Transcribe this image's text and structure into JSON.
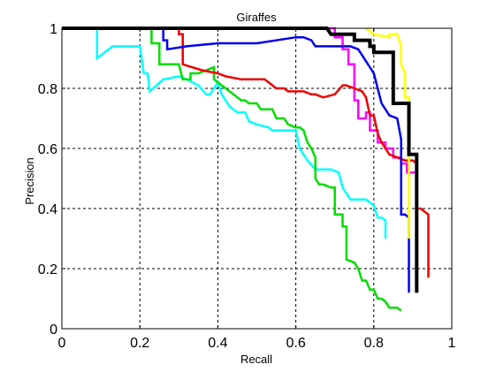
{
  "chart_data": {
    "type": "line",
    "title": "Giraffes",
    "xlabel": "Recall",
    "ylabel": "Precision",
    "xlim": [
      0,
      1
    ],
    "ylim": [
      0,
      1
    ],
    "grid": true,
    "xticks": [
      0,
      0.2,
      0.4,
      0.6,
      0.8,
      1
    ],
    "yticks": [
      0,
      0.2,
      0.4,
      0.6,
      0.8,
      1
    ],
    "xtick_labels": [
      "0",
      "0.2",
      "0.4",
      "0.6",
      "0.8",
      "1"
    ],
    "ytick_labels": [
      "0",
      "0.2",
      "0.4",
      "0.6",
      "0.8",
      "1"
    ],
    "series": [
      {
        "color": "#ff00ff",
        "points": [
          [
            0.015,
            1.0
          ],
          [
            0.7,
            1.0
          ],
          [
            0.7,
            0.97
          ],
          [
            0.72,
            0.97
          ],
          [
            0.72,
            0.93
          ],
          [
            0.735,
            0.93
          ],
          [
            0.735,
            0.88
          ],
          [
            0.75,
            0.88
          ],
          [
            0.75,
            0.76
          ],
          [
            0.76,
            0.76
          ],
          [
            0.76,
            0.7
          ],
          [
            0.78,
            0.7
          ],
          [
            0.78,
            0.72
          ],
          [
            0.79,
            0.72
          ],
          [
            0.79,
            0.66
          ],
          [
            0.81,
            0.66
          ],
          [
            0.81,
            0.62
          ],
          [
            0.83,
            0.62
          ],
          [
            0.83,
            0.6
          ],
          [
            0.85,
            0.6
          ],
          [
            0.85,
            0.57
          ],
          [
            0.87,
            0.57
          ],
          [
            0.87,
            0.55
          ],
          [
            0.885,
            0.55
          ],
          [
            0.885,
            0.52
          ],
          [
            0.91,
            0.52
          ],
          [
            0.91,
            0.12
          ]
        ]
      },
      {
        "color": "#00ffff",
        "points": [
          [
            0.09,
            1.0
          ],
          [
            0.09,
            0.9
          ],
          [
            0.13,
            0.94
          ],
          [
            0.14,
            0.94
          ],
          [
            0.2,
            0.94
          ],
          [
            0.21,
            0.85
          ],
          [
            0.22,
            0.85
          ],
          [
            0.225,
            0.79
          ],
          [
            0.26,
            0.83
          ],
          [
            0.3,
            0.84
          ],
          [
            0.32,
            0.83
          ],
          [
            0.35,
            0.81
          ],
          [
            0.37,
            0.78
          ],
          [
            0.38,
            0.78
          ],
          [
            0.4,
            0.82
          ],
          [
            0.41,
            0.78
          ],
          [
            0.43,
            0.74
          ],
          [
            0.45,
            0.72
          ],
          [
            0.47,
            0.72
          ],
          [
            0.48,
            0.69
          ],
          [
            0.5,
            0.68
          ],
          [
            0.53,
            0.67
          ],
          [
            0.54,
            0.66
          ],
          [
            0.57,
            0.66
          ],
          [
            0.6,
            0.66
          ],
          [
            0.61,
            0.6
          ],
          [
            0.63,
            0.56
          ],
          [
            0.65,
            0.53
          ],
          [
            0.69,
            0.53
          ],
          [
            0.71,
            0.52
          ],
          [
            0.72,
            0.47
          ],
          [
            0.74,
            0.43
          ],
          [
            0.78,
            0.43
          ],
          [
            0.8,
            0.41
          ],
          [
            0.81,
            0.37
          ],
          [
            0.82,
            0.37
          ],
          [
            0.83,
            0.36
          ],
          [
            0.83,
            0.3
          ]
        ]
      },
      {
        "color": "#00dd00",
        "points": [
          [
            0.23,
            1.0
          ],
          [
            0.23,
            0.95
          ],
          [
            0.25,
            0.95
          ],
          [
            0.25,
            0.88
          ],
          [
            0.28,
            0.88
          ],
          [
            0.3,
            0.88
          ],
          [
            0.31,
            0.83
          ],
          [
            0.33,
            0.83
          ],
          [
            0.33,
            0.85
          ],
          [
            0.35,
            0.85
          ],
          [
            0.37,
            0.86
          ],
          [
            0.39,
            0.87
          ],
          [
            0.39,
            0.83
          ],
          [
            0.42,
            0.8
          ],
          [
            0.43,
            0.79
          ],
          [
            0.44,
            0.78
          ],
          [
            0.46,
            0.76
          ],
          [
            0.47,
            0.76
          ],
          [
            0.48,
            0.75
          ],
          [
            0.5,
            0.75
          ],
          [
            0.51,
            0.73
          ],
          [
            0.53,
            0.73
          ],
          [
            0.54,
            0.73
          ],
          [
            0.55,
            0.7
          ],
          [
            0.57,
            0.7
          ],
          [
            0.58,
            0.68
          ],
          [
            0.6,
            0.67
          ],
          [
            0.61,
            0.67
          ],
          [
            0.62,
            0.66
          ],
          [
            0.63,
            0.62
          ],
          [
            0.64,
            0.6
          ],
          [
            0.65,
            0.57
          ],
          [
            0.65,
            0.5
          ],
          [
            0.66,
            0.48
          ],
          [
            0.67,
            0.48
          ],
          [
            0.69,
            0.47
          ],
          [
            0.7,
            0.47
          ],
          [
            0.7,
            0.38
          ],
          [
            0.72,
            0.38
          ],
          [
            0.72,
            0.34
          ],
          [
            0.73,
            0.34
          ],
          [
            0.73,
            0.23
          ],
          [
            0.75,
            0.22
          ],
          [
            0.76,
            0.2
          ],
          [
            0.77,
            0.16
          ],
          [
            0.78,
            0.16
          ],
          [
            0.79,
            0.13
          ],
          [
            0.8,
            0.13
          ],
          [
            0.81,
            0.1
          ],
          [
            0.82,
            0.1
          ],
          [
            0.83,
            0.09
          ],
          [
            0.84,
            0.07
          ],
          [
            0.86,
            0.07
          ],
          [
            0.87,
            0.06
          ]
        ]
      },
      {
        "color": "#ee0000",
        "points": [
          [
            0.3,
            1.0
          ],
          [
            0.3,
            0.98
          ],
          [
            0.31,
            0.98
          ],
          [
            0.31,
            0.93
          ],
          [
            0.31,
            0.88
          ],
          [
            0.36,
            0.86
          ],
          [
            0.4,
            0.85
          ],
          [
            0.42,
            0.84
          ],
          [
            0.46,
            0.83
          ],
          [
            0.52,
            0.83
          ],
          [
            0.55,
            0.8
          ],
          [
            0.57,
            0.8
          ],
          [
            0.58,
            0.79
          ],
          [
            0.62,
            0.79
          ],
          [
            0.64,
            0.78
          ],
          [
            0.65,
            0.78
          ],
          [
            0.67,
            0.77
          ],
          [
            0.7,
            0.78
          ],
          [
            0.72,
            0.81
          ],
          [
            0.73,
            0.81
          ],
          [
            0.75,
            0.8
          ],
          [
            0.77,
            0.79
          ],
          [
            0.78,
            0.77
          ],
          [
            0.79,
            0.71
          ],
          [
            0.8,
            0.71
          ],
          [
            0.81,
            0.65
          ],
          [
            0.82,
            0.62
          ],
          [
            0.83,
            0.6
          ],
          [
            0.84,
            0.58
          ],
          [
            0.86,
            0.57
          ],
          [
            0.88,
            0.56
          ],
          [
            0.9,
            0.56
          ],
          [
            0.91,
            0.55
          ],
          [
            0.91,
            0.4
          ],
          [
            0.92,
            0.4
          ],
          [
            0.93,
            0.39
          ],
          [
            0.94,
            0.38
          ],
          [
            0.94,
            0.17
          ]
        ]
      },
      {
        "color": "#0000ee",
        "points": [
          [
            0.26,
            1.0
          ],
          [
            0.26,
            0.96
          ],
          [
            0.27,
            0.96
          ],
          [
            0.27,
            0.93
          ],
          [
            0.32,
            0.94
          ],
          [
            0.4,
            0.95
          ],
          [
            0.5,
            0.95
          ],
          [
            0.6,
            0.97
          ],
          [
            0.62,
            0.97
          ],
          [
            0.64,
            0.96
          ],
          [
            0.65,
            0.94
          ],
          [
            0.74,
            0.94
          ],
          [
            0.76,
            0.93
          ],
          [
            0.77,
            0.91
          ],
          [
            0.8,
            0.85
          ],
          [
            0.82,
            0.75
          ],
          [
            0.84,
            0.71
          ],
          [
            0.86,
            0.7
          ],
          [
            0.87,
            0.63
          ],
          [
            0.87,
            0.38
          ],
          [
            0.88,
            0.38
          ],
          [
            0.89,
            0.37
          ],
          [
            0.89,
            0.12
          ]
        ]
      },
      {
        "color": "#ffff00",
        "points": [
          [
            0.78,
            1.0
          ],
          [
            0.8,
            0.98
          ],
          [
            0.84,
            0.97
          ],
          [
            0.84,
            0.98
          ],
          [
            0.86,
            0.98
          ],
          [
            0.87,
            0.94
          ],
          [
            0.87,
            0.88
          ],
          [
            0.88,
            0.85
          ],
          [
            0.88,
            0.77
          ],
          [
            0.89,
            0.77
          ],
          [
            0.89,
            0.75
          ],
          [
            0.89,
            0.5
          ],
          [
            0.89,
            0.3
          ]
        ]
      },
      {
        "color": "#000000",
        "points": [
          [
            0.0,
            1.0
          ],
          [
            0.68,
            1.0
          ],
          [
            0.69,
            0.98
          ],
          [
            0.75,
            0.98
          ],
          [
            0.75,
            0.96
          ],
          [
            0.79,
            0.96
          ],
          [
            0.79,
            0.94
          ],
          [
            0.8,
            0.94
          ],
          [
            0.8,
            0.92
          ],
          [
            0.85,
            0.92
          ],
          [
            0.85,
            0.75
          ],
          [
            0.89,
            0.75
          ],
          [
            0.89,
            0.58
          ],
          [
            0.91,
            0.58
          ],
          [
            0.91,
            0.12
          ]
        ]
      }
    ]
  }
}
